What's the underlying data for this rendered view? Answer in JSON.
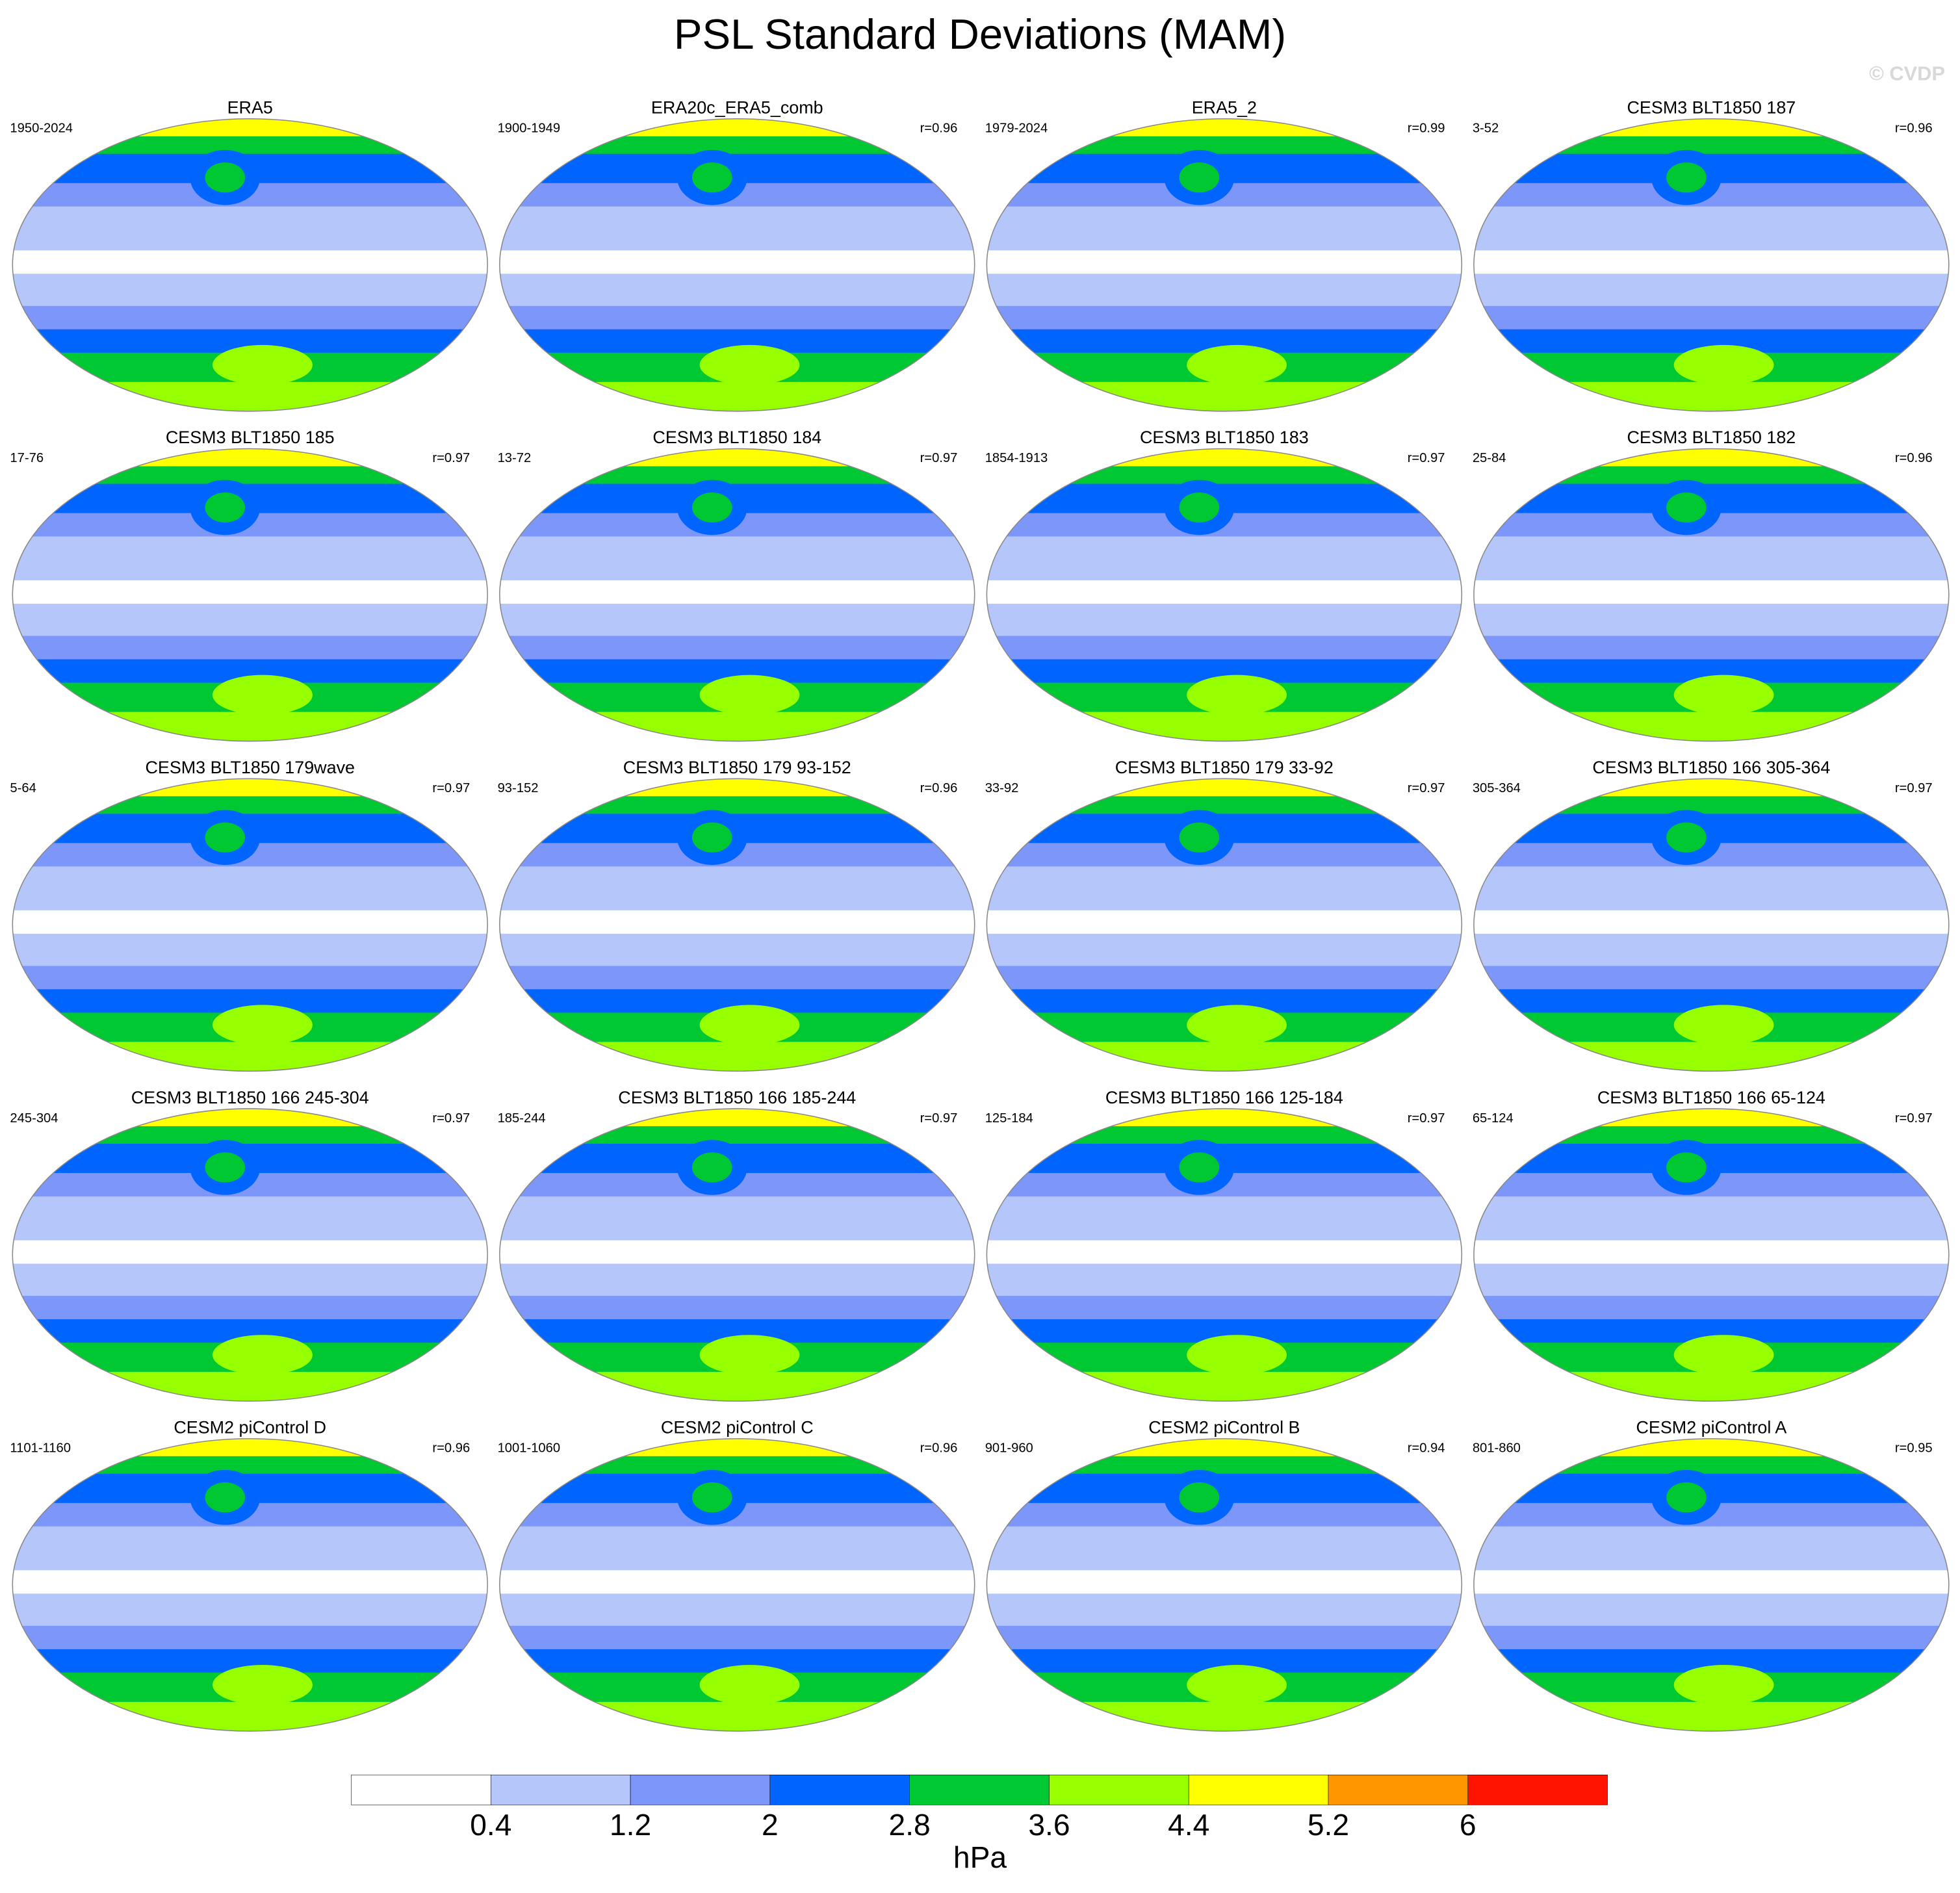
{
  "title": "PSL Standard Deviations (MAM)",
  "watermark": "© CVDP",
  "panels": [
    {
      "title": "ERA5",
      "left": "1950-2024"
    },
    {
      "title": "ERA20c_ERA5_comb",
      "left": "1900-1949",
      "right": "r=0.96"
    },
    {
      "title": "ERA5_2",
      "left": "1979-2024",
      "right": "r=0.99"
    },
    {
      "title": "CESM3 BLT1850 187",
      "left": "3-52",
      "right": "r=0.96"
    },
    {
      "title": "CESM3 BLT1850 185",
      "left": "17-76",
      "right": "r=0.97"
    },
    {
      "title": "CESM3 BLT1850 184",
      "left": "13-72",
      "right": "r=0.97"
    },
    {
      "title": "CESM3 BLT1850 183",
      "left": "1854-1913",
      "right": "r=0.97"
    },
    {
      "title": "CESM3 BLT1850 182",
      "left": "25-84",
      "right": "r=0.96"
    },
    {
      "title": "CESM3 BLT1850 179wave",
      "left": "5-64",
      "right": "r=0.97"
    },
    {
      "title": "CESM3 BLT1850 179 93-152",
      "left": "93-152",
      "right": "r=0.96"
    },
    {
      "title": "CESM3 BLT1850 179 33-92",
      "left": "33-92",
      "right": "r=0.97"
    },
    {
      "title": "CESM3 BLT1850 166 305-364",
      "left": "305-364",
      "right": "r=0.97"
    },
    {
      "title": "CESM3 BLT1850 166 245-304",
      "left": "245-304",
      "right": "r=0.97"
    },
    {
      "title": "CESM3 BLT1850 166 185-244",
      "left": "185-244",
      "right": "r=0.97"
    },
    {
      "title": "CESM3 BLT1850 166 125-184",
      "left": "125-184",
      "right": "r=0.97"
    },
    {
      "title": "CESM3 BLT1850 166 65-124",
      "left": "65-124",
      "right": "r=0.97"
    },
    {
      "title": "CESM2 piControl D",
      "left": "1101-1160",
      "right": "r=0.96"
    },
    {
      "title": "CESM2 piControl C",
      "left": "1001-1060",
      "right": "r=0.96"
    },
    {
      "title": "CESM2 piControl B",
      "left": "901-960",
      "right": "r=0.94"
    },
    {
      "title": "CESM2 piControl A",
      "left": "801-860",
      "right": "r=0.95"
    }
  ],
  "colorbar": {
    "levels": [
      0.4,
      1.2,
      2,
      2.8,
      3.6,
      4.4,
      5.2,
      6
    ],
    "colors": [
      "#ffffff",
      "#b4c6fa",
      "#7d96fa",
      "#0064ff",
      "#00c832",
      "#96ff00",
      "#ffff00",
      "#ff9600",
      "#ff1400"
    ],
    "unit": "hPa"
  }
}
